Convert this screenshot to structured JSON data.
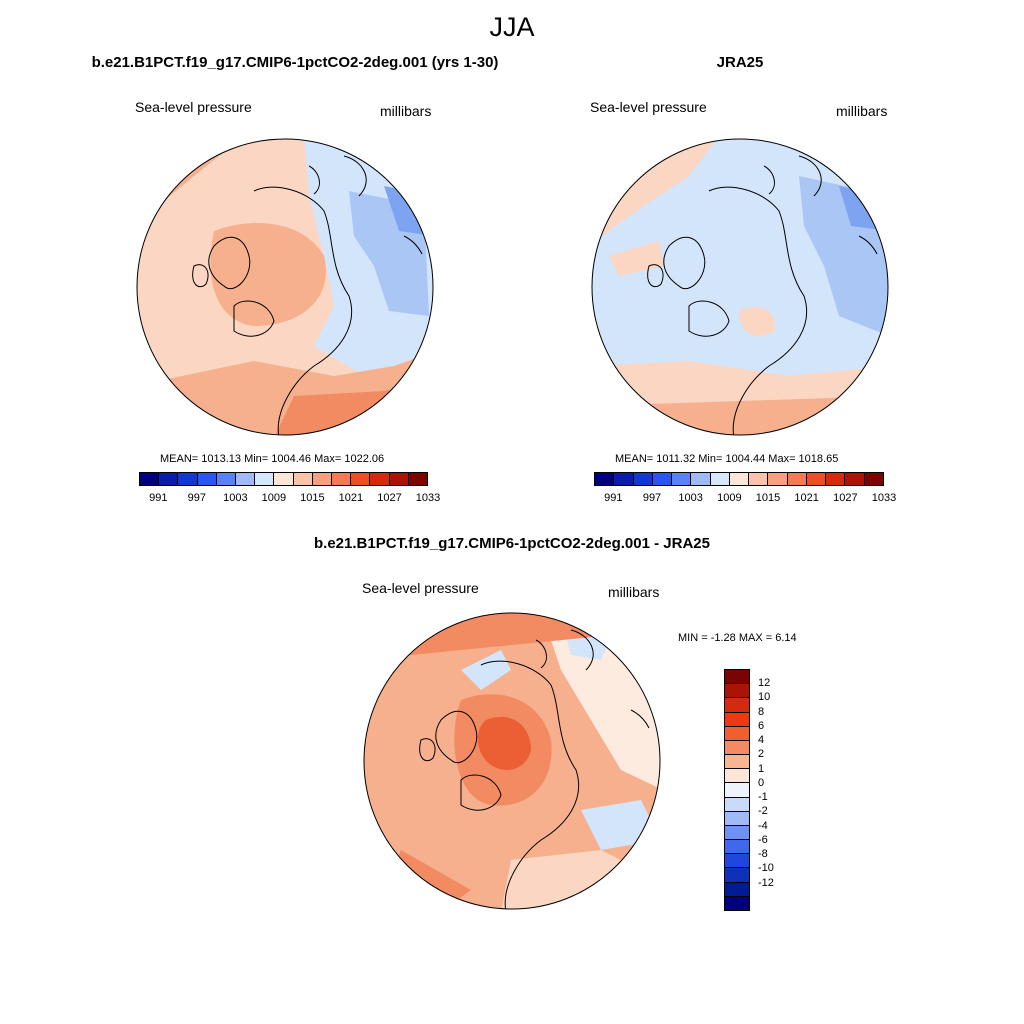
{
  "title": "JJA",
  "panels": [
    {
      "title": "b.e21.B1PCT.f19_g17.CMIP6-1pctCO2-2deg.001 (yrs 1-30)",
      "variable": "Sea-level pressure",
      "units": "millibars",
      "stats": "MEAN= 1013.13  Min= 1004.46  Max= 1022.06"
    },
    {
      "title": "JRA25",
      "variable": "Sea-level pressure",
      "units": "millibars",
      "stats": "MEAN= 1011.32  Min= 1004.44  Max= 1018.65"
    },
    {
      "title": "b.e21.B1PCT.f19_g17.CMIP6-1pctCO2-2deg.001 - JRA25",
      "variable": "Sea-level pressure",
      "units": "millibars",
      "stats": "MIN =  -1.28 MAX =   6.14"
    }
  ],
  "colorbar_abs": {
    "ticks": [
      "991",
      "997",
      "1003",
      "1009",
      "1015",
      "1021",
      "1027",
      "1033"
    ],
    "colors": [
      "#00007f",
      "#0a1ca8",
      "#1437d0",
      "#2a55f0",
      "#5a82f5",
      "#9fbaf5",
      "#d6e6fb",
      "#fde6d6",
      "#f9c4aa",
      "#f6a080",
      "#f27a55",
      "#ec4f28",
      "#d42b10",
      "#a81405",
      "#7a0500"
    ]
  },
  "colorbar_diff": {
    "ticks": [
      "12",
      "10",
      "8",
      "6",
      "4",
      "2",
      "1",
      "0",
      "-1",
      "-2",
      "-4",
      "-6",
      "-8",
      "-10",
      "-12"
    ],
    "colors": [
      "#7a0500",
      "#a81405",
      "#d42b10",
      "#ec3a10",
      "#f0602e",
      "#f28a62",
      "#f7b592",
      "#fde6d6",
      "#eef3fc",
      "#c9dbf8",
      "#9fbaf5",
      "#6d92f2",
      "#4068ee",
      "#1f47dc",
      "#1030b8",
      "#001b94",
      "#00007f"
    ]
  },
  "map_colors": {
    "light_orange": "#fbd6c2",
    "mid_orange": "#f6b08d",
    "orange": "#f28a62",
    "dark_orange": "#ec5f34",
    "light_blue": "#d3e5fb",
    "mid_blue": "#aac6f5",
    "blue": "#7ea3f0",
    "cream": "#fdebdf"
  }
}
